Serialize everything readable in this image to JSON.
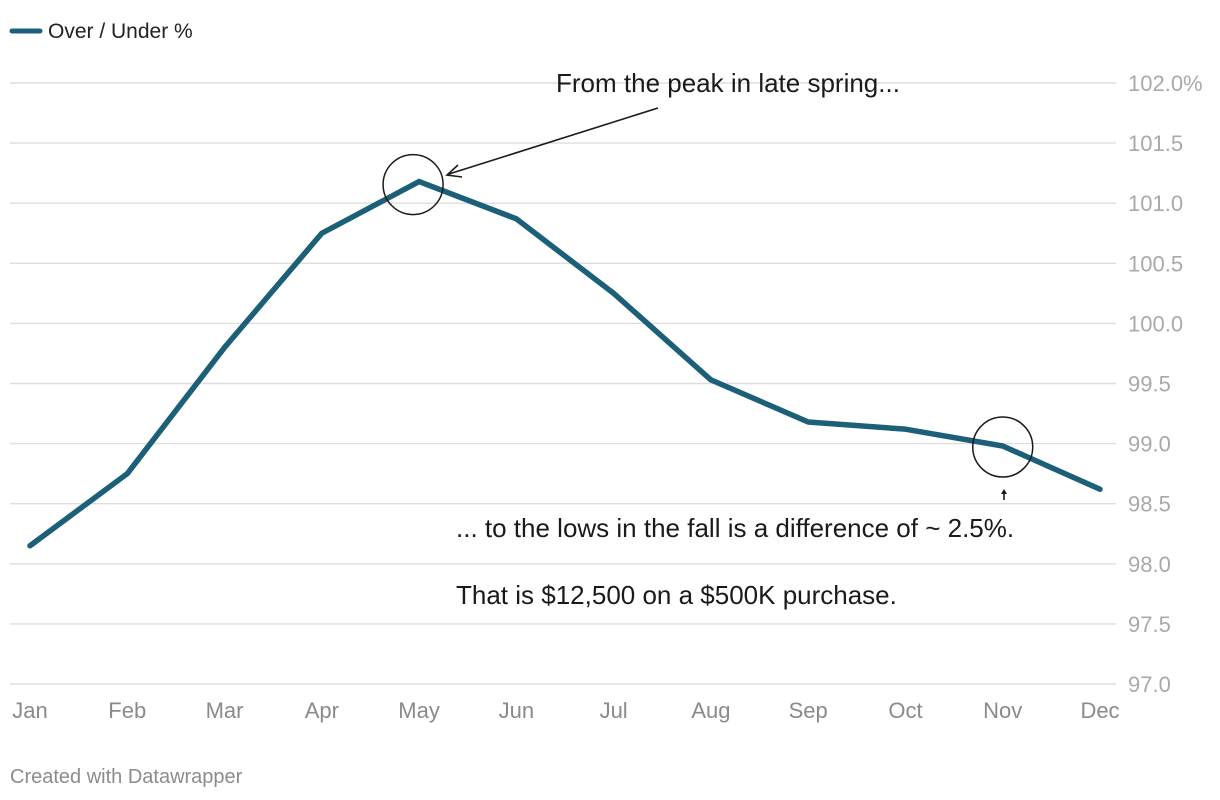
{
  "chart_data": {
    "type": "line",
    "title": "",
    "xlabel": "",
    "ylabel": "",
    "categories": [
      "Jan",
      "Feb",
      "Mar",
      "Apr",
      "May",
      "Jun",
      "Jul",
      "Aug",
      "Sep",
      "Oct",
      "Nov",
      "Dec"
    ],
    "series": [
      {
        "name": "Over / Under %",
        "color": "#1c5f78",
        "values": [
          98.15,
          98.75,
          99.8,
          100.75,
          101.18,
          100.87,
          100.25,
          99.53,
          99.18,
          99.12,
          98.98,
          98.62
        ]
      }
    ],
    "ylim": [
      97.0,
      102.0
    ],
    "yticks": [
      97.0,
      97.5,
      98.0,
      98.5,
      99.0,
      99.5,
      100.0,
      100.5,
      101.0,
      101.5,
      102.0
    ],
    "ytick_labels": [
      "97.0",
      "97.5",
      "98.0",
      "98.5",
      "99.0",
      "99.5",
      "100.0",
      "100.5",
      "101.0",
      "101.5",
      "102.0%"
    ],
    "grid": true,
    "legend_position": "top-left",
    "annotations": {
      "peak": {
        "text": "From the peak in late spring...",
        "month": "May"
      },
      "low": {
        "text": "... to the lows in the fall is a difference of ~ 2.5%.",
        "month": "Nov"
      },
      "note": {
        "text": "That is $12,500 on a $500K purchase."
      }
    }
  },
  "credit": "Created with Datawrapper"
}
